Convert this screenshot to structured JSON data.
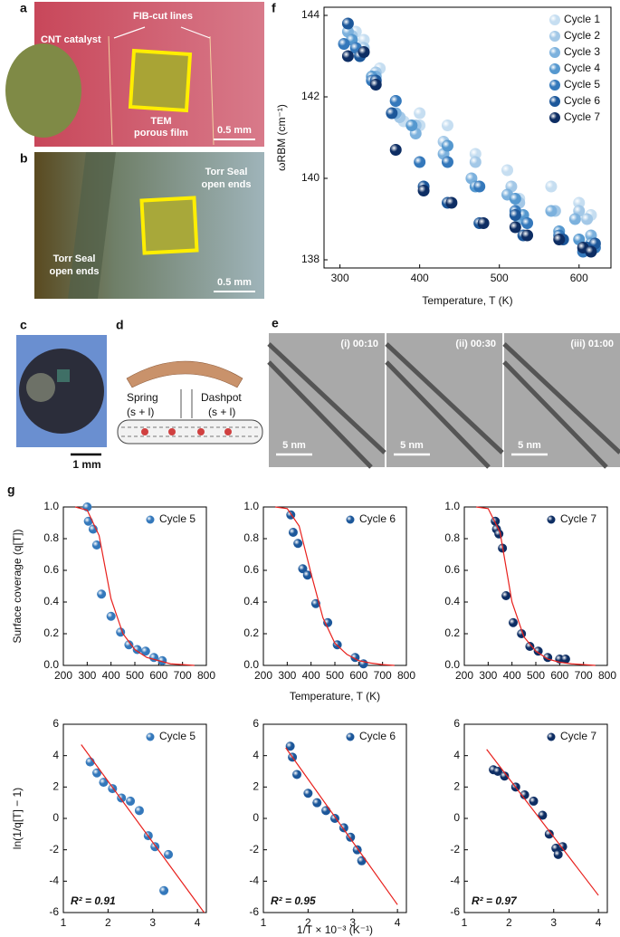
{
  "figure": {
    "panel_labels": [
      "a",
      "b",
      "c",
      "d",
      "e",
      "f",
      "g"
    ],
    "a": {
      "catalyst": "CNT catalyst",
      "lines": "FIB-cut lines",
      "film_1": "TEM",
      "film_2": "porous film",
      "scale": "0.5 mm"
    },
    "b": {
      "right_1": "Torr Seal",
      "right_2": "open ends",
      "left_1": "Torr Seal",
      "left_2": "open ends",
      "scale": "0.5 mm"
    },
    "c": {
      "scale": "1 mm"
    },
    "d": {
      "spring": "Spring",
      "spring_sub": "(s + l)",
      "dashpot": "Dashpot",
      "dashpot_sub": "(s + l)"
    },
    "e": {
      "frames": [
        "(i) 00:10",
        "(ii) 00:30",
        "(iii) 01:00"
      ],
      "scales": [
        "5 nm",
        "5 nm",
        "5 nm"
      ]
    }
  },
  "chart_data": [
    {
      "type": "scatter",
      "xlabel": "Temperature, T (K)",
      "ylabel": "ωRBM (cm⁻¹)",
      "xlim": [
        280,
        640
      ],
      "xticks": [
        300,
        400,
        500,
        600
      ],
      "ylim": [
        137.8,
        144.2
      ],
      "yticks": [
        138,
        140,
        142,
        144
      ],
      "legend": "upper right",
      "series": [
        {
          "name": "Cycle 1",
          "color": "#c6def1",
          "x": [
            320,
            330,
            350,
            380,
            400,
            400,
            435,
            470,
            510,
            525,
            565,
            600,
            615
          ],
          "values": [
            143.6,
            143.4,
            142.7,
            141.4,
            141.6,
            141.3,
            141.3,
            140.6,
            140.2,
            139.5,
            139.8,
            139.4,
            139.1
          ]
        },
        {
          "name": "Cycle 2",
          "color": "#a3c8e7",
          "x": [
            315,
            330,
            345,
            375,
            395,
            430,
            470,
            515,
            525,
            570,
            600,
            610
          ],
          "values": [
            143.5,
            143.2,
            142.6,
            141.5,
            141.3,
            140.9,
            140.4,
            139.8,
            139.4,
            139.2,
            139.2,
            139.0
          ]
        },
        {
          "name": "Cycle 3",
          "color": "#7cb1dd",
          "x": [
            310,
            325,
            345,
            370,
            395,
            430,
            465,
            510,
            525,
            565,
            595,
            615
          ],
          "values": [
            143.6,
            143.1,
            142.5,
            141.6,
            141.1,
            140.6,
            140.0,
            139.6,
            139.0,
            139.2,
            139.0,
            138.6
          ]
        },
        {
          "name": "Cycle 4",
          "color": "#5598cf",
          "x": [
            315,
            325,
            340,
            370,
            390,
            435,
            470,
            520,
            530,
            575,
            600,
            615
          ],
          "values": [
            143.4,
            143.0,
            142.5,
            141.9,
            141.3,
            140.8,
            139.8,
            139.5,
            139.1,
            138.7,
            138.5,
            138.4
          ]
        },
        {
          "name": "Cycle 5",
          "color": "#3478bb",
          "x": [
            305,
            320,
            340,
            370,
            400,
            435,
            475,
            520,
            535,
            575,
            605,
            620
          ],
          "values": [
            143.3,
            143.2,
            142.4,
            141.9,
            140.4,
            140.4,
            139.8,
            139.2,
            138.9,
            138.6,
            138.2,
            138.3
          ]
        },
        {
          "name": "Cycle 6",
          "color": "#1c579a",
          "x": [
            310,
            325,
            345,
            365,
            405,
            435,
            475,
            520,
            530,
            580,
            610,
            620
          ],
          "values": [
            143.8,
            143.0,
            142.4,
            141.6,
            139.8,
            139.4,
            138.9,
            139.1,
            138.6,
            138.5,
            138.3,
            138.4
          ]
        },
        {
          "name": "Cycle 7",
          "color": "#0d2d63",
          "x": [
            310,
            330,
            345,
            370,
            405,
            440,
            480,
            520,
            535,
            575,
            605,
            615
          ],
          "values": [
            143.0,
            143.1,
            142.3,
            140.7,
            139.7,
            139.4,
            138.9,
            138.8,
            138.6,
            138.5,
            138.3,
            138.2
          ]
        }
      ]
    },
    {
      "type": "scatter",
      "ylabel": "Surface coverage (q[T])",
      "xlim": [
        200,
        800
      ],
      "xticks": [
        200,
        300,
        400,
        500,
        600,
        700,
        800
      ],
      "ylim": [
        0,
        1
      ],
      "yticks": [
        {
          "value": 0,
          "label": "0.0"
        },
        0.2,
        0.4,
        0.6,
        0.8,
        {
          "value": 1,
          "label": "1.0"
        }
      ],
      "legend": "upper right",
      "series": [
        {
          "name": "Cycle 5",
          "color": "#3478bb",
          "x": [
            300,
            305,
            325,
            340,
            360,
            400,
            440,
            475,
            510,
            545,
            580,
            615
          ],
          "values": [
            1.0,
            0.91,
            0.86,
            0.76,
            0.45,
            0.31,
            0.21,
            0.13,
            0.1,
            0.09,
            0.05,
            0.03
          ]
        },
        {
          "mode": "line",
          "color": "#e8201c",
          "x": [
            250,
            300,
            350,
            400,
            450,
            500,
            550,
            600,
            650,
            700,
            750
          ],
          "values": [
            1.0,
            0.98,
            0.82,
            0.42,
            0.2,
            0.1,
            0.05,
            0.03,
            0.01,
            0.005,
            0
          ]
        }
      ]
    },
    {
      "type": "scatter",
      "xlabel": "Temperature, T (K)",
      "xlim": [
        200,
        800
      ],
      "xticks": [
        200,
        300,
        400,
        500,
        600,
        700,
        800
      ],
      "ylim": [
        0,
        1
      ],
      "yticks": [
        {
          "value": 0,
          "label": "0.0"
        },
        0.2,
        0.4,
        0.6,
        0.8,
        {
          "value": 1,
          "label": "1.0"
        }
      ],
      "legend": "upper right",
      "series": [
        {
          "name": "Cycle 6",
          "color": "#1c579a",
          "x": [
            315,
            325,
            345,
            365,
            385,
            420,
            470,
            510,
            585,
            620
          ],
          "values": [
            0.95,
            0.84,
            0.77,
            0.61,
            0.57,
            0.39,
            0.27,
            0.13,
            0.05,
            0.01
          ]
        },
        {
          "mode": "line",
          "color": "#e8201c",
          "x": [
            250,
            300,
            350,
            400,
            450,
            500,
            550,
            600,
            650,
            700,
            750
          ],
          "values": [
            1.0,
            0.99,
            0.88,
            0.58,
            0.3,
            0.14,
            0.07,
            0.03,
            0.015,
            0.005,
            0
          ]
        }
      ]
    },
    {
      "type": "scatter",
      "xlim": [
        200,
        800
      ],
      "xticks": [
        200,
        300,
        400,
        500,
        600,
        700,
        800
      ],
      "ylim": [
        0,
        1
      ],
      "yticks": [
        {
          "value": 0,
          "label": "0.0"
        },
        0.2,
        0.4,
        0.6,
        0.8,
        {
          "value": 1,
          "label": "1.0"
        }
      ],
      "legend": "upper right",
      "series": [
        {
          "name": "Cycle 7",
          "color": "#0d2d63",
          "x": [
            330,
            335,
            345,
            360,
            375,
            405,
            440,
            475,
            510,
            550,
            600,
            625
          ],
          "values": [
            0.91,
            0.86,
            0.83,
            0.74,
            0.44,
            0.27,
            0.2,
            0.12,
            0.09,
            0.05,
            0.04,
            0.04
          ]
        },
        {
          "mode": "line",
          "color": "#e8201c",
          "x": [
            250,
            300,
            350,
            400,
            450,
            500,
            550,
            600,
            650,
            700,
            750
          ],
          "values": [
            1.0,
            0.99,
            0.84,
            0.4,
            0.18,
            0.09,
            0.04,
            0.02,
            0.01,
            0.005,
            0
          ]
        }
      ]
    },
    {
      "type": "scatter",
      "ylabel": "ln(1/q[T] − 1)",
      "annotation": "R² = 0.91",
      "xlim": [
        1,
        4.2
      ],
      "xticks": [
        1,
        2,
        3,
        4
      ],
      "ylim": [
        -6,
        6
      ],
      "yticks": [
        -6,
        -4,
        -2,
        0,
        2,
        4,
        6
      ],
      "legend": "upper right",
      "series": [
        {
          "name": "Cycle 5",
          "color": "#3478bb",
          "x": [
            1.6,
            1.75,
            1.9,
            2.1,
            2.3,
            2.5,
            2.7,
            2.9,
            3.05,
            3.35,
            3.25
          ],
          "values": [
            3.6,
            2.9,
            2.3,
            1.9,
            1.3,
            1.1,
            0.5,
            -1.1,
            -1.8,
            -2.3,
            -4.6
          ]
        },
        {
          "mode": "line",
          "color": "#e8201c",
          "x": [
            1.4,
            4.15
          ],
          "values": [
            4.7,
            -6
          ]
        }
      ]
    },
    {
      "type": "scatter",
      "xlabel": "1/T × 10⁻³ (K⁻¹)",
      "annotation": "R² = 0.95",
      "xlim": [
        1,
        4.2
      ],
      "xticks": [
        1,
        2,
        3,
        4
      ],
      "ylim": [
        -6,
        6
      ],
      "yticks": [
        -6,
        -4,
        -2,
        0,
        2,
        4,
        6
      ],
      "legend": "upper right",
      "series": [
        {
          "name": "Cycle 6",
          "color": "#1c579a",
          "x": [
            1.6,
            1.65,
            1.75,
            2.0,
            2.2,
            2.4,
            2.6,
            2.8,
            2.95,
            3.1,
            3.2
          ],
          "values": [
            4.6,
            3.9,
            2.8,
            1.6,
            1.0,
            0.5,
            0.0,
            -0.6,
            -1.2,
            -2.0,
            -2.7
          ]
        },
        {
          "mode": "line",
          "color": "#e8201c",
          "x": [
            1.5,
            4.0
          ],
          "values": [
            4.5,
            -5.5
          ]
        }
      ]
    },
    {
      "type": "scatter",
      "annotation": "R² = 0.97",
      "xlim": [
        1,
        4.2
      ],
      "xticks": [
        1,
        2,
        3,
        4
      ],
      "ylim": [
        -6,
        6
      ],
      "yticks": [
        -6,
        -4,
        -2,
        0,
        2,
        4,
        6
      ],
      "legend": "upper right",
      "series": [
        {
          "name": "Cycle 7",
          "color": "#0d2d63",
          "x": [
            1.65,
            1.75,
            1.9,
            2.15,
            2.35,
            2.55,
            2.75,
            2.9,
            3.05,
            3.2,
            3.1
          ],
          "values": [
            3.1,
            3.0,
            2.7,
            2.0,
            1.5,
            1.1,
            0.2,
            -1.0,
            -1.9,
            -1.8,
            -2.3
          ]
        },
        {
          "mode": "line",
          "color": "#e8201c",
          "x": [
            1.5,
            4.0
          ],
          "values": [
            4.4,
            -4.9
          ]
        }
      ]
    }
  ]
}
